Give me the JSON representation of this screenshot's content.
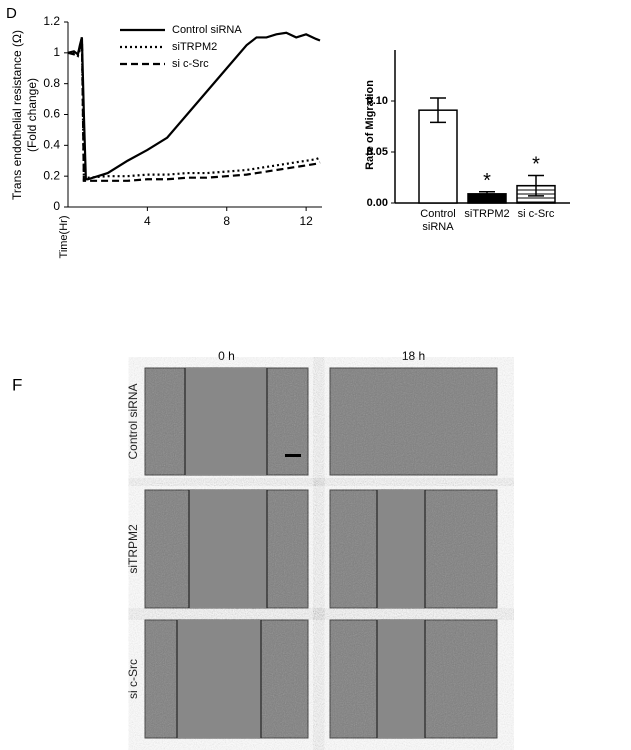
{
  "chart_data": [
    {
      "type": "line",
      "panel_label": "D",
      "ylabel": [
        "Trans endothelial resistance (Ω)",
        "(Fold change)"
      ],
      "xlabel": "Time(Hr)",
      "x": [
        0,
        0.3,
        0.5,
        0.6,
        0.7,
        0.8,
        0.9,
        1,
        2,
        3,
        4,
        5,
        6,
        7,
        8,
        9,
        9.5,
        10,
        10.5,
        11,
        11.5,
        12,
        12.5,
        12.7
      ],
      "series": [
        {
          "name": "Control siRNA",
          "color": "#000",
          "style": "solid",
          "values": [
            1.0,
            1.01,
            0.99,
            1.05,
            1.1,
            0.6,
            0.18,
            0.18,
            0.22,
            0.3,
            0.37,
            0.45,
            0.6,
            0.75,
            0.9,
            1.05,
            1.1,
            1.1,
            1.12,
            1.13,
            1.1,
            1.12,
            1.09,
            1.08
          ]
        },
        {
          "name": "siTRPM2",
          "color": "#000",
          "style": "dotted",
          "values": [
            1.0,
            1.0,
            0.98,
            1.02,
            1.08,
            0.18,
            0.19,
            0.19,
            0.2,
            0.2,
            0.21,
            0.21,
            0.22,
            0.22,
            0.23,
            0.24,
            0.25,
            0.26,
            0.27,
            0.28,
            0.29,
            0.3,
            0.31,
            0.32
          ]
        },
        {
          "name": "si c-Src",
          "color": "#000",
          "style": "dashed",
          "values": [
            1.0,
            0.99,
            1.0,
            1.03,
            1.1,
            0.17,
            0.17,
            0.17,
            0.17,
            0.17,
            0.18,
            0.18,
            0.19,
            0.19,
            0.2,
            0.21,
            0.22,
            0.23,
            0.24,
            0.25,
            0.26,
            0.27,
            0.28,
            0.29
          ]
        }
      ],
      "xlim": [
        0,
        12.8
      ],
      "xticks": [
        4,
        8,
        12
      ],
      "ylim": [
        0,
        1.2
      ],
      "yticks": [
        0,
        0.2,
        0.4,
        0.6,
        0.8,
        1,
        1.2
      ]
    },
    {
      "type": "bar",
      "ylabel": "Rate of  Migration",
      "categories": [
        "Control siRNA",
        "siTRPM2",
        "si c-Src"
      ],
      "values": [
        0.091,
        0.009,
        0.017
      ],
      "errors": [
        0.012,
        0.002,
        0.01
      ],
      "fills": [
        "white",
        "black",
        "striped"
      ],
      "significance": [
        null,
        "*",
        "*"
      ],
      "ylim": [
        0,
        0.15
      ],
      "yticks": [
        {
          "value": 0,
          "label": "0.00"
        },
        {
          "value": 0.05,
          "label": "0.05"
        },
        {
          "value": 0.1,
          "label": "0.10"
        }
      ]
    }
  ],
  "panel_f": {
    "label": "F",
    "columns": [
      "0 h",
      "18 h"
    ],
    "rows": [
      "Control siRNA",
      "siTRPM2",
      "si c-Src"
    ]
  }
}
